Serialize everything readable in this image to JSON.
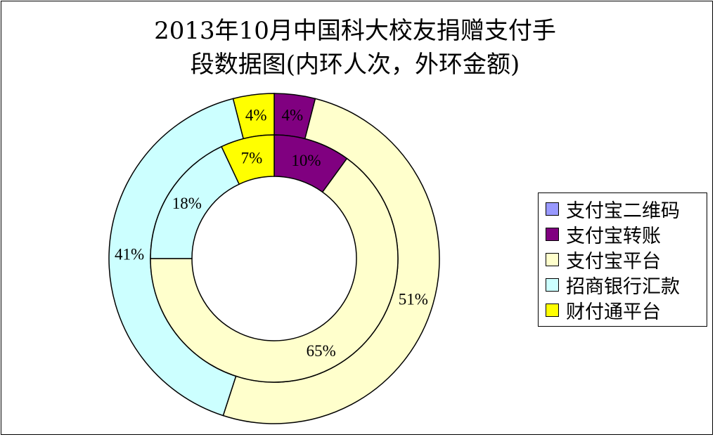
{
  "chart_data": {
    "type": "donut",
    "title": "2013年10月中国科大校友捐赠支付手段数据图(内环人次，外环金额)",
    "title_lines": [
      "2013年10月中国科大校友捐赠支付手",
      "段数据图(内环人次，外环金额)"
    ],
    "categories": [
      "支付宝二维码",
      "支付宝转账",
      "支付宝平台",
      "招商银行汇款",
      "财付通平台"
    ],
    "colors": [
      "#9999FF",
      "#800080",
      "#FFFFCC",
      "#CCFFFF",
      "#FFFF00"
    ],
    "series": [
      {
        "name": "外环金额",
        "values": [
          0,
          4,
          51,
          41,
          4
        ],
        "labels": [
          "",
          "4%",
          "51%",
          "41%",
          "4%"
        ]
      },
      {
        "name": "内环人次",
        "values": [
          0,
          10,
          65,
          18,
          7
        ],
        "labels": [
          "",
          "10%",
          "65%",
          "18%",
          "7%"
        ]
      }
    ],
    "legend_position": "right"
  }
}
